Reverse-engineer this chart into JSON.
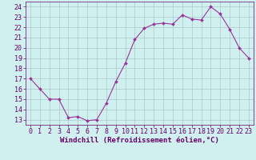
{
  "x": [
    0,
    1,
    2,
    3,
    4,
    5,
    6,
    7,
    8,
    9,
    10,
    11,
    12,
    13,
    14,
    15,
    16,
    17,
    18,
    19,
    20,
    21,
    22,
    23
  ],
  "y": [
    17.0,
    16.0,
    15.0,
    15.0,
    13.2,
    13.3,
    12.9,
    13.0,
    14.6,
    16.7,
    18.5,
    20.8,
    21.9,
    22.3,
    22.4,
    22.3,
    23.2,
    22.8,
    22.7,
    24.0,
    23.3,
    21.8,
    20.0,
    19.0
  ],
  "line_color": "#993399",
  "marker": "D",
  "marker_size": 2.0,
  "bg_color": "#d0f0f0",
  "grid_color": "#a8c8c8",
  "xlabel": "Windchill (Refroidissement éolien,°C)",
  "ylim": [
    12.5,
    24.5
  ],
  "yticks": [
    13,
    14,
    15,
    16,
    17,
    18,
    19,
    20,
    21,
    22,
    23,
    24
  ],
  "xticks": [
    0,
    1,
    2,
    3,
    4,
    5,
    6,
    7,
    8,
    9,
    10,
    11,
    12,
    13,
    14,
    15,
    16,
    17,
    18,
    19,
    20,
    21,
    22,
    23
  ],
  "tick_color": "#660066",
  "xlabel_color": "#660066",
  "xlabel_fontsize": 6.5,
  "tick_fontsize": 6.0,
  "linewidth": 0.8
}
